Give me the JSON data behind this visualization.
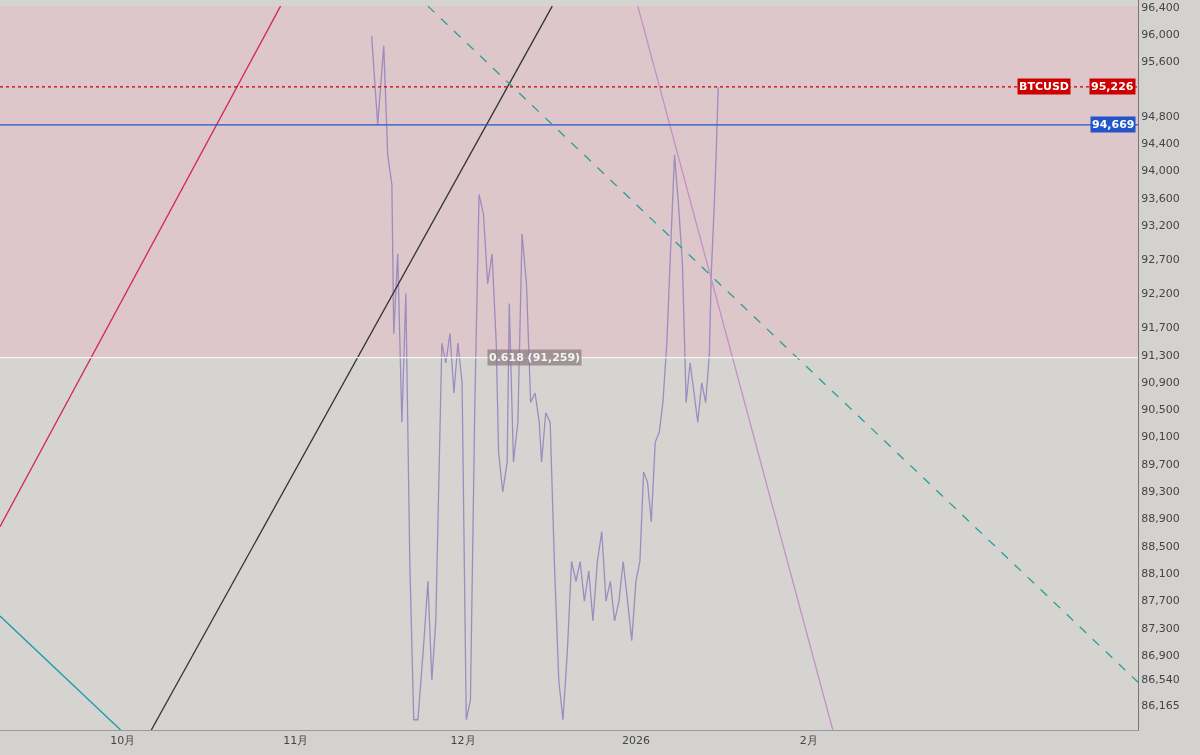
{
  "chart_data": {
    "type": "line",
    "xlim": [
      "2025-09-09",
      "2026-04-01"
    ],
    "xticks": [
      {
        "value": "2025-10-01",
        "label": "10月"
      },
      {
        "value": "2025-11-01",
        "label": "11月"
      },
      {
        "value": "2025-12-01",
        "label": "12月"
      },
      {
        "value": "2026-01-01",
        "label": "2026"
      },
      {
        "value": "2026-02-01",
        "label": "2月"
      }
    ],
    "ylim": [
      85800,
      96500
    ],
    "yticks": [
      {
        "value": 86165,
        "label": "86,165"
      },
      {
        "value": 86540,
        "label": "86,540"
      },
      {
        "value": 86900,
        "label": "86,900"
      },
      {
        "value": 87300,
        "label": "87,300"
      },
      {
        "value": 87700,
        "label": "87,700"
      },
      {
        "value": 88100,
        "label": "88,100"
      },
      {
        "value": 88500,
        "label": "88,500"
      },
      {
        "value": 88900,
        "label": "88,900"
      },
      {
        "value": 89300,
        "label": "89,300"
      },
      {
        "value": 89700,
        "label": "89,700"
      },
      {
        "value": 90100,
        "label": "90,100"
      },
      {
        "value": 90500,
        "label": "90,500"
      },
      {
        "value": 90900,
        "label": "90,900"
      },
      {
        "value": 91300,
        "label": "91,300"
      },
      {
        "value": 91700,
        "label": "91,700"
      },
      {
        "value": 92200,
        "label": "92,200"
      },
      {
        "value": 92700,
        "label": "92,700"
      },
      {
        "value": 93200,
        "label": "93,200"
      },
      {
        "value": 93600,
        "label": "93,600"
      },
      {
        "value": 94000,
        "label": "94,000"
      },
      {
        "value": 94400,
        "label": "94,400"
      },
      {
        "value": 94800,
        "label": "94,800"
      },
      {
        "value": 95600,
        "label": "95,600"
      },
      {
        "value": 96000,
        "label": "96,000"
      },
      {
        "value": 96400,
        "label": "96,400"
      }
    ],
    "grid": false,
    "marker": "none",
    "series": [
      {
        "color": "#9c8cc0",
        "x": [
          "2025-11-14T15:00",
          "2025-11-15T17:00",
          "2025-11-16T19:00",
          "2025-11-17T12:00",
          "2025-11-18T06:00",
          "2025-11-18T14:00",
          "2025-11-19T07:00",
          "2025-11-20T01:00",
          "2025-11-20T18:00",
          "2025-11-21T11:00",
          "2025-11-22T04:00",
          "2025-11-22T22:00",
          "2025-11-24T00:00",
          "2025-11-24T17:00",
          "2025-11-25T10:00",
          "2025-11-26T03:00",
          "2025-11-27T05:00",
          "2025-11-27T22:00",
          "2025-11-28T16:00",
          "2025-11-29T09:00",
          "2025-11-30T02:00",
          "2025-11-30T20:00",
          "2025-12-01T14:00",
          "2025-12-02T08:00",
          "2025-12-03T03:00",
          "2025-12-03T21:00",
          "2025-12-04T16:00",
          "2025-12-05T10:00",
          "2025-12-06T05:00",
          "2025-12-06T23:00",
          "2025-12-07T09:00",
          "2025-12-08T03:00",
          "2025-12-08T22:00",
          "2025-12-09T07:00",
          "2025-12-10T01:00",
          "2025-12-10T20:00",
          "2025-12-11T14:00",
          "2025-12-12T09:00",
          "2025-12-13T03:00",
          "2025-12-13T22:00",
          "2025-12-14T16:00",
          "2025-12-15T02:00",
          "2025-12-15T20:00",
          "2025-12-16T15:00",
          "2025-12-17T09:00",
          "2025-12-18T04:00",
          "2025-12-18T22:00",
          "2025-12-19T17:00",
          "2025-12-20T11:00",
          "2025-12-21T06:00",
          "2025-12-22T00:00",
          "2025-12-22T18:00",
          "2025-12-23T13:00",
          "2025-12-24T07:00",
          "2025-12-25T02:00",
          "2025-12-25T21:00",
          "2025-12-26T15:00",
          "2025-12-27T10:00",
          "2025-12-28T04:00",
          "2025-12-28T23:00",
          "2025-12-29T17:00",
          "2025-12-30T12:00",
          "2025-12-31T06:00",
          "2026-01-01T00:00",
          "2026-01-01T17:00",
          "2026-01-02T09:00",
          "2026-01-03T02:00",
          "2026-01-03T18:00",
          "2026-01-04T11:00",
          "2026-01-05T04:00",
          "2026-01-05T20:00",
          "2026-01-06T13:00",
          "2026-01-07T06:00",
          "2026-01-07T22:00",
          "2026-01-08T15:00",
          "2026-01-09T08:00",
          "2026-01-10T00:00",
          "2026-01-10T17:00",
          "2026-01-11T10:00",
          "2026-01-12T02:00",
          "2026-01-12T19:00",
          "2026-01-13T12:00",
          "2026-01-14T04:00",
          "2026-01-14T12:00",
          "2026-01-15T01:00",
          "2026-01-15T09:00",
          "2026-01-15T18:00"
        ],
        "values": [
          95970,
          94670,
          95830,
          94230,
          93790,
          91610,
          92780,
          90310,
          92200,
          88270,
          85950,
          85950,
          87110,
          87980,
          86530,
          87400,
          91470,
          91180,
          91610,
          90740,
          91470,
          90890,
          85950,
          86240,
          90600,
          93650,
          93360,
          92340,
          92780,
          91470,
          89870,
          89290,
          89730,
          92050,
          89730,
          90310,
          93070,
          92340,
          90600,
          90740,
          90310,
          89730,
          90450,
          90310,
          88270,
          86530,
          85950,
          86960,
          88270,
          87980,
          88270,
          87690,
          88130,
          87400,
          88270,
          88710,
          87690,
          87980,
          87400,
          87690,
          88270,
          87690,
          87110,
          87980,
          88270,
          89580,
          89430,
          88850,
          90020,
          90160,
          90600,
          91470,
          92920,
          94230,
          93500,
          92630,
          90600,
          91180,
          90740,
          90310,
          90890,
          90600,
          91320,
          92490,
          93500,
          94230,
          95226
        ]
      },
      {
        "color": "#d6245c",
        "x": [
          "2025-09-09",
          "2025-10-29T07:00"
        ],
        "values": [
          88780,
          96410
        ]
      },
      {
        "color": "#333333",
        "x": [
          "2025-10-06T03:00",
          "2025-12-17"
        ],
        "values": [
          85800,
          96410
        ]
      },
      {
        "color": "#1a9ba8",
        "x": [
          "2025-09-09",
          "2025-09-30T15:00"
        ],
        "values": [
          87470,
          85800
        ]
      },
      {
        "color": "#2a9d9a",
        "line_style": "dashed",
        "x": [
          "2025-11-24T17:00",
          "2026-04-01"
        ],
        "values": [
          96410,
          86500
        ]
      },
      {
        "color": "#c58fc8",
        "x": [
          "2026-01-01T08:00",
          "2026-02-05T07:00"
        ],
        "values": [
          96410,
          85800
        ]
      }
    ],
    "ref_lines": [
      {
        "axis": "y",
        "value": 95226,
        "label": "95,226",
        "color": "#cc0000",
        "line_style": "dotted"
      },
      {
        "axis": "y",
        "value": 94669,
        "label": "94,669",
        "color": "#2255cc",
        "line_style": "solid"
      },
      {
        "axis": "y",
        "value": 91259,
        "label": "0.618 (91,259)",
        "color": "#f4f4f4",
        "line_style": "solid"
      }
    ],
    "bands": [
      {
        "axis": "y",
        "from": 91259,
        "to": 96410,
        "color": "#e7b9c2"
      }
    ],
    "annotations": [
      {
        "text": "BTCUSD",
        "x": "2026-03-20",
        "y": 95226
      }
    ]
  }
}
